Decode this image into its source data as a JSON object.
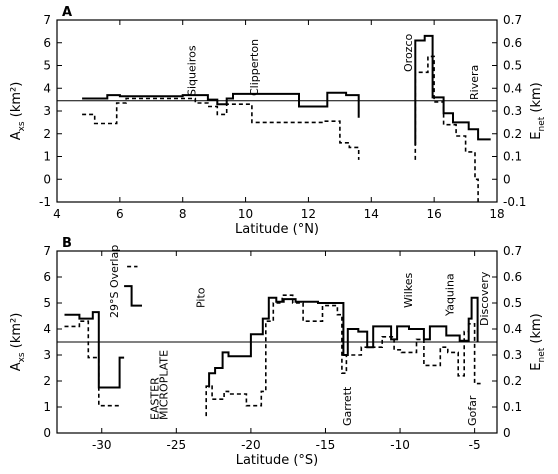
{
  "chart_data": [
    {
      "panel": "A",
      "type": "line",
      "xlabel": "Latitude (°N)",
      "ylabel_left": "A_xs (km²)",
      "ylabel_right": "E_net (km)",
      "xlim": [
        4,
        18
      ],
      "ylim_left": [
        -1,
        7
      ],
      "ylim_right": [
        -0.1,
        0.7
      ],
      "xticks": [
        4,
        6,
        8,
        10,
        12,
        14,
        16,
        18
      ],
      "yticks_left": [
        -1,
        0,
        1,
        2,
        3,
        4,
        5,
        6,
        7
      ],
      "yticks_right": [
        -0.1,
        0,
        0.1,
        0.2,
        0.3,
        0.4,
        0.5,
        0.6,
        0.7
      ],
      "reference_line": 3.45,
      "annotations": [
        {
          "text": "Siqueiros",
          "x": 8.4
        },
        {
          "text": "Clipperton",
          "x": 10.4
        },
        {
          "text": "Orozco",
          "x": 15.3
        },
        {
          "text": "Rivera",
          "x": 17.4
        }
      ],
      "series": [
        {
          "style": "solid",
          "segments": [
            [
              [
                4.8,
                3.55
              ],
              [
                5.6,
                3.55
              ],
              [
                5.6,
                3.7
              ],
              [
                6.0,
                3.7
              ],
              [
                6.0,
                3.65
              ],
              [
                8.0,
                3.65
              ],
              [
                8.0,
                3.7
              ],
              [
                8.8,
                3.7
              ],
              [
                8.8,
                3.5
              ],
              [
                9.1,
                3.5
              ],
              [
                9.1,
                3.3
              ],
              [
                9.4,
                3.3
              ],
              [
                9.4,
                3.55
              ],
              [
                9.6,
                3.55
              ],
              [
                9.6,
                3.75
              ],
              [
                11.7,
                3.75
              ],
              [
                11.7,
                3.2
              ],
              [
                12.6,
                3.2
              ],
              [
                12.6,
                3.8
              ],
              [
                13.2,
                3.8
              ],
              [
                13.2,
                3.7
              ],
              [
                13.6,
                3.7
              ],
              [
                13.6,
                2.7
              ]
            ],
            [
              [
                15.4,
                1.5
              ],
              [
                15.4,
                6.1
              ],
              [
                15.7,
                6.1
              ],
              [
                15.7,
                6.3
              ],
              [
                15.95,
                6.3
              ],
              [
                15.95,
                3.6
              ],
              [
                16.3,
                3.6
              ],
              [
                16.3,
                2.9
              ],
              [
                16.6,
                2.9
              ],
              [
                16.6,
                2.5
              ],
              [
                17.1,
                2.5
              ],
              [
                17.1,
                2.2
              ],
              [
                17.4,
                2.2
              ],
              [
                17.4,
                1.75
              ],
              [
                17.8,
                1.75
              ]
            ]
          ]
        },
        {
          "style": "dashed",
          "segments": [
            [
              [
                4.8,
                2.85
              ],
              [
                5.2,
                2.85
              ],
              [
                5.2,
                2.45
              ],
              [
                5.9,
                2.45
              ],
              [
                5.9,
                3.35
              ],
              [
                6.2,
                3.35
              ],
              [
                6.2,
                3.55
              ],
              [
                8.4,
                3.55
              ],
              [
                8.4,
                3.35
              ],
              [
                8.8,
                3.35
              ],
              [
                8.8,
                3.2
              ],
              [
                9.1,
                3.2
              ],
              [
                9.1,
                2.85
              ],
              [
                9.4,
                2.85
              ],
              [
                9.4,
                3.3
              ],
              [
                10.2,
                3.3
              ],
              [
                10.2,
                2.5
              ],
              [
                12.5,
                2.5
              ],
              [
                12.5,
                2.55
              ],
              [
                13.0,
                2.55
              ],
              [
                13.0,
                1.6
              ],
              [
                13.3,
                1.6
              ],
              [
                13.3,
                1.4
              ],
              [
                13.6,
                1.4
              ],
              [
                13.6,
                0.85
              ]
            ],
            [
              [
                15.4,
                0.85
              ],
              [
                15.4,
                4.7
              ],
              [
                15.8,
                4.7
              ],
              [
                15.8,
                5.4
              ],
              [
                16.0,
                5.4
              ],
              [
                16.0,
                3.4
              ],
              [
                16.3,
                3.4
              ],
              [
                16.3,
                2.4
              ],
              [
                16.7,
                2.4
              ],
              [
                16.7,
                1.9
              ],
              [
                17.0,
                1.9
              ],
              [
                17.0,
                1.2
              ],
              [
                17.3,
                1.2
              ],
              [
                17.3,
                0.0
              ],
              [
                17.4,
                0.0
              ],
              [
                17.4,
                -1.0
              ]
            ]
          ]
        }
      ]
    },
    {
      "panel": "B",
      "type": "line",
      "xlabel": "Latitude (°S)",
      "ylabel_left": "A_xs (km²)",
      "ylabel_right": "E_net (km)",
      "xlim": [
        -33,
        -3.5
      ],
      "ylim_left": [
        0,
        7
      ],
      "ylim_right": [
        0,
        0.7
      ],
      "xticks": [
        -30,
        -25,
        -20,
        -15,
        -10,
        -5
      ],
      "yticks_left": [
        0,
        1,
        2,
        3,
        4,
        5,
        6,
        7
      ],
      "yticks_right": [
        0,
        0.1,
        0.2,
        0.3,
        0.4,
        0.5,
        0.6,
        0.7
      ],
      "reference_line": 3.5,
      "annotations": [
        {
          "text": "29°S Overlap",
          "x": -28.9
        },
        {
          "text": "EASTER",
          "x": -26.2
        },
        {
          "text": "MICROPLATE",
          "x": -25.6
        },
        {
          "text": "Pito",
          "x": -23.1
        },
        {
          "text": "Garrett",
          "x": -13.3
        },
        {
          "text": "Wilkes",
          "x": -9.2
        },
        {
          "text": "Yaquina",
          "x": -6.4
        },
        {
          "text": "Gofar",
          "x": -4.9
        },
        {
          "text": "Discovery",
          "x": -4.1
        }
      ],
      "series": [
        {
          "style": "solid",
          "segments": [
            [
              [
                -32.5,
                4.55
              ],
              [
                -31.5,
                4.55
              ],
              [
                -31.5,
                4.4
              ],
              [
                -30.6,
                4.4
              ],
              [
                -30.6,
                4.65
              ],
              [
                -30.2,
                4.65
              ],
              [
                -30.2,
                1.75
              ],
              [
                -28.8,
                1.75
              ],
              [
                -28.8,
                2.9
              ],
              [
                -28.5,
                2.9
              ]
            ],
            [
              [
                -28.5,
                5.65
              ],
              [
                -28.0,
                5.65
              ],
              [
                -28.0,
                4.9
              ],
              [
                -27.3,
                4.9
              ]
            ],
            [
              [
                -22.8,
                1.75
              ],
              [
                -22.8,
                2.3
              ],
              [
                -22.4,
                2.3
              ],
              [
                -22.4,
                2.5
              ],
              [
                -21.9,
                2.5
              ],
              [
                -21.9,
                3.1
              ],
              [
                -21.5,
                3.1
              ],
              [
                -21.5,
                2.95
              ],
              [
                -20.0,
                2.95
              ],
              [
                -20.0,
                3.8
              ],
              [
                -19.2,
                3.8
              ],
              [
                -19.2,
                4.4
              ],
              [
                -18.8,
                4.4
              ],
              [
                -18.8,
                5.2
              ],
              [
                -18.3,
                5.2
              ],
              [
                -18.3,
                5.05
              ],
              [
                -17.8,
                5.05
              ],
              [
                -17.8,
                5.15
              ],
              [
                -17.0,
                5.15
              ],
              [
                -17.0,
                5.05
              ],
              [
                -15.5,
                5.05
              ],
              [
                -15.5,
                5.0
              ],
              [
                -13.8,
                5.0
              ],
              [
                -13.8,
                3.0
              ],
              [
                -13.5,
                3.0
              ],
              [
                -13.5,
                4.0
              ],
              [
                -12.8,
                4.0
              ],
              [
                -12.8,
                3.9
              ],
              [
                -12.2,
                3.9
              ],
              [
                -12.2,
                3.3
              ],
              [
                -11.8,
                3.3
              ],
              [
                -11.8,
                4.1
              ],
              [
                -10.6,
                4.1
              ],
              [
                -10.6,
                3.6
              ],
              [
                -10.2,
                3.6
              ],
              [
                -10.2,
                4.1
              ],
              [
                -9.4,
                4.1
              ],
              [
                -9.4,
                4.0
              ],
              [
                -8.4,
                4.0
              ],
              [
                -8.4,
                3.6
              ],
              [
                -8.0,
                3.6
              ],
              [
                -8.0,
                4.1
              ],
              [
                -6.9,
                4.1
              ],
              [
                -6.9,
                3.75
              ],
              [
                -6.0,
                3.75
              ],
              [
                -6.0,
                3.55
              ],
              [
                -5.4,
                3.55
              ],
              [
                -5.4,
                4.4
              ],
              [
                -5.2,
                4.4
              ],
              [
                -5.2,
                5.2
              ],
              [
                -4.8,
                5.2
              ],
              [
                -4.8,
                3.5
              ]
            ]
          ]
        },
        {
          "style": "dashed",
          "segments": [
            [
              [
                -32.5,
                4.1
              ],
              [
                -31.5,
                4.1
              ],
              [
                -31.5,
                4.3
              ],
              [
                -30.9,
                4.3
              ],
              [
                -30.9,
                2.9
              ],
              [
                -30.2,
                2.9
              ],
              [
                -30.2,
                1.05
              ],
              [
                -28.8,
                1.05
              ]
            ],
            [
              [
                -28.3,
                6.4
              ],
              [
                -27.6,
                6.4
              ]
            ],
            [
              [
                -23.0,
                0.65
              ],
              [
                -23.0,
                1.8
              ],
              [
                -22.6,
                1.8
              ],
              [
                -22.6,
                1.3
              ],
              [
                -21.8,
                1.3
              ],
              [
                -21.8,
                1.6
              ],
              [
                -21.5,
                1.6
              ],
              [
                -21.5,
                1.5
              ],
              [
                -20.3,
                1.5
              ],
              [
                -20.3,
                1.05
              ],
              [
                -19.3,
                1.05
              ],
              [
                -19.3,
                1.6
              ],
              [
                -19.0,
                1.6
              ],
              [
                -19.0,
                4.3
              ],
              [
                -18.5,
                4.3
              ],
              [
                -18.5,
                5.0
              ],
              [
                -17.9,
                5.0
              ],
              [
                -17.9,
                5.3
              ],
              [
                -17.2,
                5.3
              ],
              [
                -17.2,
                5.0
              ],
              [
                -16.5,
                5.0
              ],
              [
                -16.5,
                4.3
              ],
              [
                -15.2,
                4.3
              ],
              [
                -15.2,
                4.9
              ],
              [
                -14.2,
                4.9
              ],
              [
                -14.2,
                4.55
              ],
              [
                -13.9,
                4.55
              ],
              [
                -13.9,
                2.3
              ],
              [
                -13.6,
                2.3
              ],
              [
                -13.6,
                3.0
              ],
              [
                -12.6,
                3.0
              ],
              [
                -12.6,
                3.3
              ],
              [
                -11.2,
                3.3
              ],
              [
                -11.2,
                3.7
              ],
              [
                -10.4,
                3.7
              ],
              [
                -10.4,
                3.2
              ],
              [
                -9.9,
                3.2
              ],
              [
                -9.9,
                3.1
              ],
              [
                -8.9,
                3.1
              ],
              [
                -8.9,
                3.6
              ],
              [
                -8.4,
                3.6
              ],
              [
                -8.4,
                2.6
              ],
              [
                -7.3,
                2.6
              ],
              [
                -7.3,
                3.3
              ],
              [
                -6.8,
                3.3
              ],
              [
                -6.8,
                3.1
              ],
              [
                -6.1,
                3.1
              ],
              [
                -6.1,
                2.2
              ],
              [
                -5.7,
                2.2
              ],
              [
                -5.7,
                3.9
              ],
              [
                -5.4,
                3.9
              ],
              [
                -5.4,
                4.2
              ],
              [
                -5.0,
                4.2
              ],
              [
                -5.0,
                1.9
              ],
              [
                -4.6,
                1.9
              ]
            ]
          ]
        }
      ]
    }
  ]
}
